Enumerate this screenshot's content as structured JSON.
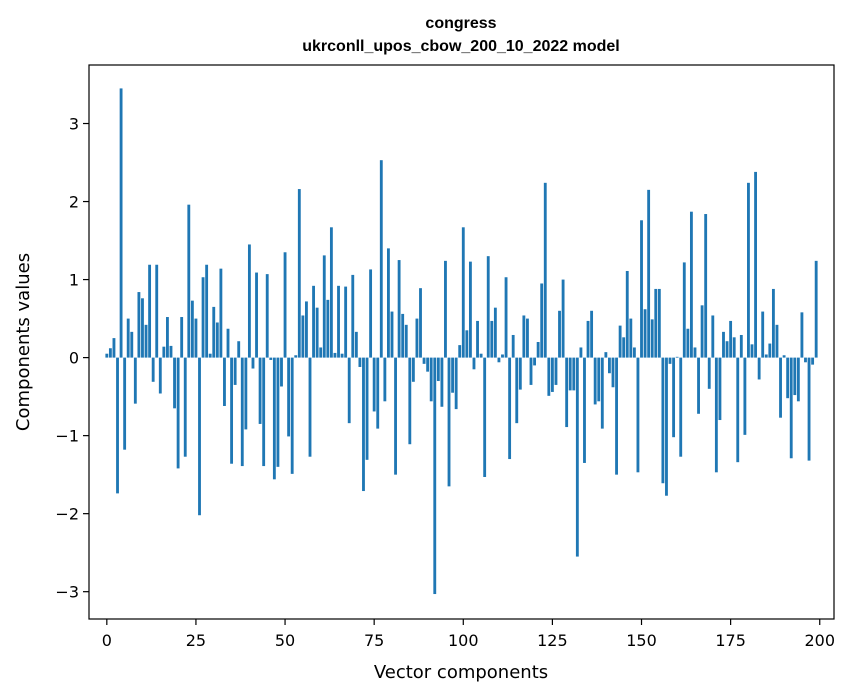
{
  "chart_data": {
    "type": "bar",
    "title": "congress",
    "subtitle": "ukrconll_upos_cbow_200_10_2022 model",
    "xlabel": "Vector components",
    "ylabel": "Components values",
    "xlim": [
      -5,
      204
    ],
    "ylim": [
      -3.35,
      3.75
    ],
    "xticks": [
      0,
      25,
      50,
      75,
      100,
      125,
      150,
      175,
      200
    ],
    "yticks": [
      -3,
      -2,
      -1,
      0,
      1,
      2,
      3
    ],
    "x": [
      0,
      1,
      2,
      3,
      4,
      5,
      6,
      7,
      8,
      9,
      10,
      11,
      12,
      13,
      14,
      15,
      16,
      17,
      18,
      19,
      20,
      21,
      22,
      23,
      24,
      25,
      26,
      27,
      28,
      29,
      30,
      31,
      32,
      33,
      34,
      35,
      36,
      37,
      38,
      39,
      40,
      41,
      42,
      43,
      44,
      45,
      46,
      47,
      48,
      49,
      50,
      51,
      52,
      53,
      54,
      55,
      56,
      57,
      58,
      59,
      60,
      61,
      62,
      63,
      64,
      65,
      66,
      67,
      68,
      69,
      70,
      71,
      72,
      73,
      74,
      75,
      76,
      77,
      78,
      79,
      80,
      81,
      82,
      83,
      84,
      85,
      86,
      87,
      88,
      89,
      90,
      91,
      92,
      93,
      94,
      95,
      96,
      97,
      98,
      99,
      100,
      101,
      102,
      103,
      104,
      105,
      106,
      107,
      108,
      109,
      110,
      111,
      112,
      113,
      114,
      115,
      116,
      117,
      118,
      119,
      120,
      121,
      122,
      123,
      124,
      125,
      126,
      127,
      128,
      129,
      130,
      131,
      132,
      133,
      134,
      135,
      136,
      137,
      138,
      139,
      140,
      141,
      142,
      143,
      144,
      145,
      146,
      147,
      148,
      149,
      150,
      151,
      152,
      153,
      154,
      155,
      156,
      157,
      158,
      159,
      160,
      161,
      162,
      163,
      164,
      165,
      166,
      167,
      168,
      169,
      170,
      171,
      172,
      173,
      174,
      175,
      176,
      177,
      178,
      179,
      180,
      181,
      182,
      183,
      184,
      185,
      186,
      187,
      188,
      189,
      190,
      191,
      192,
      193,
      194,
      195,
      196,
      197,
      198,
      199
    ],
    "values": [
      0.05,
      0.12,
      0.25,
      -1.74,
      3.45,
      -1.18,
      0.5,
      0.33,
      -0.59,
      0.84,
      0.76,
      0.42,
      1.19,
      -0.31,
      1.19,
      -0.46,
      0.14,
      0.52,
      0.15,
      -0.65,
      -1.42,
      0.52,
      -1.27,
      1.96,
      0.73,
      0.5,
      -2.02,
      1.03,
      1.19,
      0.05,
      0.65,
      0.45,
      1.14,
      -0.62,
      0.37,
      -1.36,
      -0.35,
      0.21,
      -1.39,
      -0.92,
      1.45,
      -0.14,
      1.09,
      -0.85,
      -1.39,
      1.07,
      -0.03,
      -1.56,
      -1.4,
      -0.37,
      1.35,
      -1.01,
      -1.49,
      0.03,
      2.16,
      0.54,
      0.72,
      -1.27,
      0.92,
      0.64,
      0.13,
      1.31,
      0.74,
      1.67,
      0.06,
      0.92,
      0.05,
      0.91,
      -0.84,
      1.06,
      0.33,
      -0.12,
      -1.71,
      -1.31,
      1.13,
      -0.69,
      -0.91,
      2.53,
      -0.56,
      1.4,
      0.59,
      -1.5,
      1.25,
      0.56,
      0.42,
      -1.11,
      -0.31,
      0.5,
      0.89,
      -0.08,
      -0.18,
      -0.56,
      -3.03,
      -0.3,
      -0.63,
      1.24,
      -1.65,
      -0.45,
      -0.66,
      0.16,
      1.67,
      0.35,
      1.23,
      -0.15,
      0.47,
      0.05,
      -1.53,
      1.3,
      0.47,
      0.64,
      -0.06,
      0.04,
      1.03,
      -1.3,
      0.29,
      -0.84,
      -0.41,
      0.54,
      0.5,
      -0.35,
      -0.1,
      0.2,
      0.95,
      2.24,
      -0.49,
      -0.44,
      -0.35,
      0.6,
      1.0,
      -0.89,
      -0.42,
      -0.42,
      -2.55,
      0.13,
      -1.35,
      0.47,
      0.6,
      -0.6,
      -0.56,
      -0.91,
      0.07,
      -0.2,
      -0.38,
      -1.5,
      0.41,
      0.26,
      1.11,
      0.5,
      0.13,
      -1.47,
      1.76,
      0.62,
      2.15,
      0.49,
      0.88,
      0.88,
      -1.61,
      -1.77,
      -0.08,
      -1.02,
      0.01,
      -1.27,
      1.22,
      0.37,
      1.87,
      0.13,
      -0.72,
      0.67,
      1.84,
      -0.4,
      0.54,
      -1.47,
      -0.8,
      0.33,
      0.21,
      0.47,
      0.26,
      -1.34,
      0.29,
      -0.99,
      2.24,
      0.17,
      2.38,
      -0.28,
      0.59,
      0.04,
      0.18,
      0.88,
      0.42,
      -0.77,
      0.03,
      -0.52,
      -1.29,
      -0.48,
      -0.56,
      0.58,
      -0.06,
      -1.32,
      -0.09,
      1.24
    ]
  }
}
